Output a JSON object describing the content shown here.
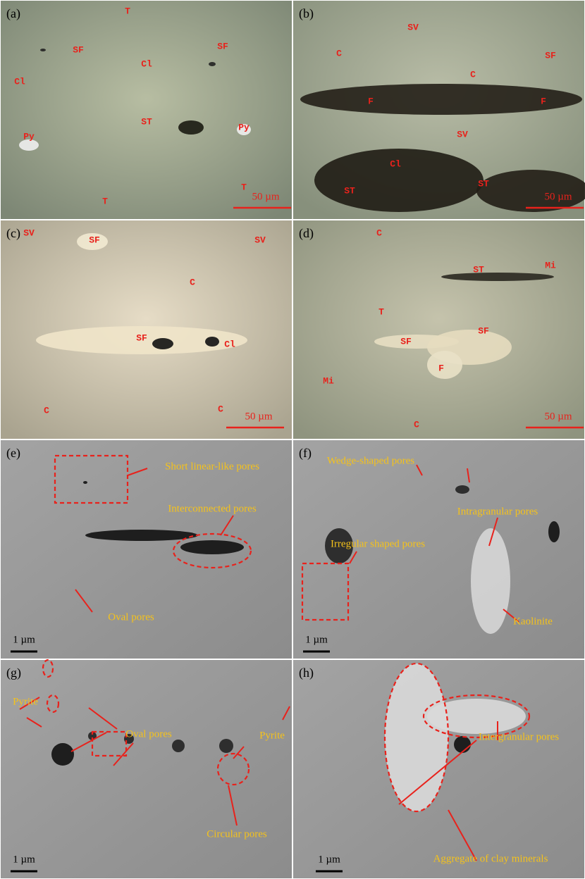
{
  "panels": [
    {
      "label": "(a)",
      "scale": "50 µm",
      "annotations": [
        "T",
        "SF",
        "SF",
        "Cl",
        "Cl",
        "ST",
        "Py",
        "Py",
        "T",
        "T"
      ]
    },
    {
      "label": "(b)",
      "scale": "50 µm",
      "annotations": [
        "SV",
        "C",
        "SF",
        "C",
        "F",
        "F",
        "SV",
        "Cl",
        "ST",
        "ST"
      ]
    },
    {
      "label": "(c)",
      "scale": "50 µm",
      "annotations": [
        "SV",
        "SF",
        "SV",
        "C",
        "SF",
        "Cl",
        "C",
        "C"
      ]
    },
    {
      "label": "(d)",
      "scale": "50 µm",
      "annotations": [
        "C",
        "Mi",
        "ST",
        "T",
        "SF",
        "SF",
        "F",
        "Mi",
        "C"
      ]
    },
    {
      "label": "(e)",
      "scale": "1 µm",
      "annotations": [
        "Short linear-like pores",
        "Interconnected pores",
        "Oval pores"
      ]
    },
    {
      "label": "(f)",
      "scale": "1 µm",
      "annotations": [
        "Wedge-shaped pores",
        "Intragranular pores",
        "Irregular shaped pores",
        "Kaolinite"
      ]
    },
    {
      "label": "(g)",
      "scale": "1 µm",
      "annotations": [
        "Pyrite",
        "Oval pores",
        "Pyrite",
        "Circular pores"
      ]
    },
    {
      "label": "(h)",
      "scale": "1 µm",
      "annotations": [
        "Intergranular pores",
        "Aggregate of clay minerals"
      ]
    }
  ]
}
